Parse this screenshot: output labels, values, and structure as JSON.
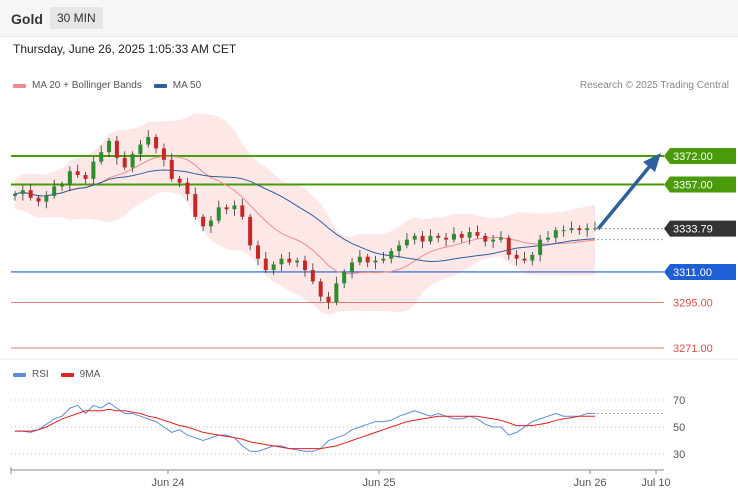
{
  "header": {
    "symbol": "Gold",
    "timeframe": "30 MIN"
  },
  "timestamp": "Thursday, June 26, 2025 1:05:33 AM CET",
  "legend": {
    "ma20_label": "MA 20 + Bollinger Bands",
    "ma20_color": "#f08c8c",
    "ma50_label": "MA 50",
    "ma50_color": "#2f5f9e"
  },
  "credit": "Research © 2025 Trading Central",
  "rsi_legend": {
    "rsi_label": "RSI",
    "rsi_color": "#5b8bd9",
    "ma_label": "9MA",
    "ma_color": "#e02020"
  },
  "chart_data": {
    "type": "candlestick",
    "price_axis": {
      "min": 3271,
      "max": 3380
    },
    "current_price": "3333.79",
    "levels": [
      {
        "label": "3372.00",
        "value": 3372,
        "color": "#4a9a0a",
        "kind": "resistance"
      },
      {
        "label": "3357.00",
        "value": 3357,
        "color": "#4a9a0a",
        "kind": "resistance"
      },
      {
        "label": "3311.00",
        "value": 3311,
        "color": "#1f5fd6",
        "kind": "pivot"
      },
      {
        "label": "3295.00",
        "value": 3295,
        "color": "#d9534f",
        "kind": "support"
      },
      {
        "label": "3271.00",
        "value": 3271,
        "color": "#d9534f",
        "kind": "support"
      }
    ],
    "x_labels": [
      "Jun 24",
      "Jun 25",
      "Jun 26",
      "Jul 10"
    ],
    "closes": [
      3352,
      3354,
      3350,
      3348,
      3351,
      3356,
      3357,
      3364,
      3362,
      3360,
      3369,
      3374,
      3380,
      3371,
      3366,
      3373,
      3378,
      3382,
      3376,
      3370,
      3360,
      3358,
      3352,
      3340,
      3335,
      3338,
      3345,
      3344,
      3346,
      3340,
      3325,
      3318,
      3312,
      3315,
      3318,
      3316,
      3317,
      3312,
      3306,
      3298,
      3295,
      3305,
      3311,
      3316,
      3319,
      3316,
      3317,
      3318,
      3322,
      3325,
      3328,
      3330,
      3327,
      3330,
      3329,
      3328,
      3331,
      3329,
      3332,
      3330,
      3327,
      3328,
      3329,
      3320,
      3318,
      3317,
      3320,
      3328,
      3329,
      3333,
      3333,
      3334,
      3333,
      3334,
      3334
    ],
    "rsi": {
      "levels": [
        70,
        50,
        30
      ],
      "values": [
        47,
        47,
        46,
        48,
        52,
        56,
        58,
        64,
        66,
        60,
        66,
        64,
        68,
        64,
        60,
        60,
        58,
        56,
        54,
        50,
        46,
        48,
        44,
        42,
        40,
        42,
        44,
        44,
        42,
        36,
        32,
        32,
        34,
        36,
        36,
        34,
        33,
        32,
        32,
        34,
        40,
        42,
        44,
        48,
        50,
        52,
        54,
        54,
        55,
        58,
        60,
        62,
        60,
        58,
        60,
        58,
        56,
        56,
        58,
        56,
        52,
        50,
        50,
        44,
        46,
        50,
        54,
        56,
        58,
        60,
        58,
        58,
        58,
        60,
        60
      ],
      "ma9": [
        47,
        47,
        47,
        48,
        50,
        53,
        56,
        58,
        60,
        62,
        62,
        62,
        63,
        62,
        62,
        61,
        60,
        58,
        57,
        55,
        53,
        51,
        50,
        48,
        46,
        45,
        44,
        43,
        42,
        41,
        39,
        38,
        37,
        36,
        35,
        34,
        34,
        34,
        34,
        34,
        35,
        36,
        38,
        40,
        42,
        44,
        46,
        48,
        50,
        52,
        54,
        55,
        56,
        57,
        58,
        58,
        58,
        58,
        58,
        58,
        57,
        56,
        55,
        53,
        51,
        51,
        51,
        52,
        53,
        55,
        56,
        57,
        58,
        58,
        58
      ]
    }
  }
}
